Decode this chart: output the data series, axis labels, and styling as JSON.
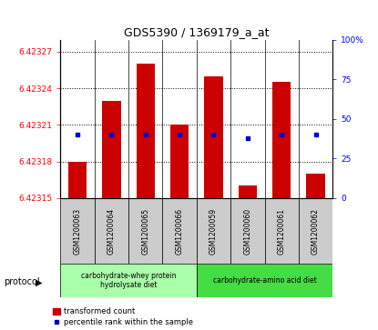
{
  "title": "GDS5390 / 1369179_a_at",
  "samples": [
    "GSM1200063",
    "GSM1200064",
    "GSM1200065",
    "GSM1200066",
    "GSM1200059",
    "GSM1200060",
    "GSM1200061",
    "GSM1200062"
  ],
  "transformed_count": [
    6.42318,
    6.42323,
    6.42326,
    6.42321,
    6.42325,
    6.42316,
    6.423245,
    6.42317
  ],
  "percentile_rank": [
    40,
    40,
    40,
    40,
    40,
    38,
    40,
    40
  ],
  "base_value": 6.42315,
  "ylim_left": [
    6.42315,
    6.42328
  ],
  "ylim_right": [
    0,
    100
  ],
  "yticks_left": [
    6.42315,
    6.42318,
    6.42321,
    6.42324,
    6.42327
  ],
  "yticks_right": [
    0,
    25,
    50,
    75,
    100
  ],
  "bar_color": "#cc0000",
  "dot_color": "#0000cc",
  "group1_indices": [
    0,
    1,
    2,
    3
  ],
  "group2_indices": [
    4,
    5,
    6,
    7
  ],
  "group1_label": "carbohydrate-whey protein\nhydrolysate diet",
  "group2_label": "carbohydrate-amino acid diet",
  "group1_color": "#aaffaa",
  "group2_color": "#44dd44",
  "sample_bg_color": "#cccccc",
  "protocol_label": "protocol",
  "legend_bar_label": "transformed count",
  "legend_dot_label": "percentile rank within the sample",
  "fig_width": 4.15,
  "fig_height": 3.63
}
